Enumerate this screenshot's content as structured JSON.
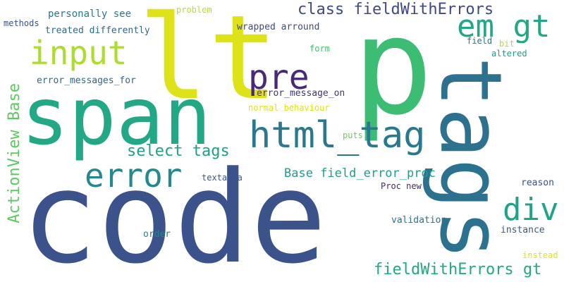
{
  "words": [
    {
      "text": "code",
      "color": "#3b528b"
    },
    {
      "text": "p",
      "color": "#3dbc74"
    },
    {
      "text": "lt",
      "color": "#dde318"
    },
    {
      "text": "span",
      "color": "#22a884"
    },
    {
      "text": "tags",
      "color": "#2c728e"
    },
    {
      "text": "html_tag",
      "color": "#2a788e"
    },
    {
      "text": "error",
      "color": "#23898e"
    },
    {
      "text": "input",
      "color": "#addc30"
    },
    {
      "text": "em gt",
      "color": "#22a884"
    },
    {
      "text": "pre",
      "color": "#482878"
    },
    {
      "text": "div",
      "color": "#20a386"
    },
    {
      "text": "ActionView Base",
      "color": "#5ec962"
    },
    {
      "text": "class fieldWithErrors",
      "color": "#3e4989"
    },
    {
      "text": "fieldWithErrors gt",
      "color": "#22a884"
    },
    {
      "text": "select tags",
      "color": "#1fa187"
    },
    {
      "text": "Base field_error_proc",
      "color": "#1f9e89"
    },
    {
      "text": "personally see",
      "color": "#2a788e"
    },
    {
      "text": "problem",
      "color": "#b5de2b"
    },
    {
      "text": "methods",
      "color": "#3b528b"
    },
    {
      "text": "treated differently",
      "color": "#31688e"
    },
    {
      "text": "wrapped arround",
      "color": "#3e4a89"
    },
    {
      "text": "form",
      "color": "#4ac16d"
    },
    {
      "text": "field",
      "color": "#2c728e"
    },
    {
      "text": "bit",
      "color": "#b5de2b"
    },
    {
      "text": "altered",
      "color": "#1f9e89"
    },
    {
      "text": "error_messages_for",
      "color": "#31688e"
    },
    {
      "text": "error_message_on",
      "color": "#46337e"
    },
    {
      "text": "normal behaviour",
      "color": "#dde318"
    },
    {
      "text": "puts",
      "color": "#6ece58"
    },
    {
      "text": "textarea",
      "color": "#39568c"
    },
    {
      "text": "Proc new",
      "color": "#482878"
    },
    {
      "text": "reason",
      "color": "#3b528b"
    },
    {
      "text": "validation",
      "color": "#2c728e"
    },
    {
      "text": "order",
      "color": "#25858e"
    },
    {
      "text": "instance",
      "color": "#38598c"
    },
    {
      "text": "instead",
      "color": "#dde318"
    }
  ]
}
